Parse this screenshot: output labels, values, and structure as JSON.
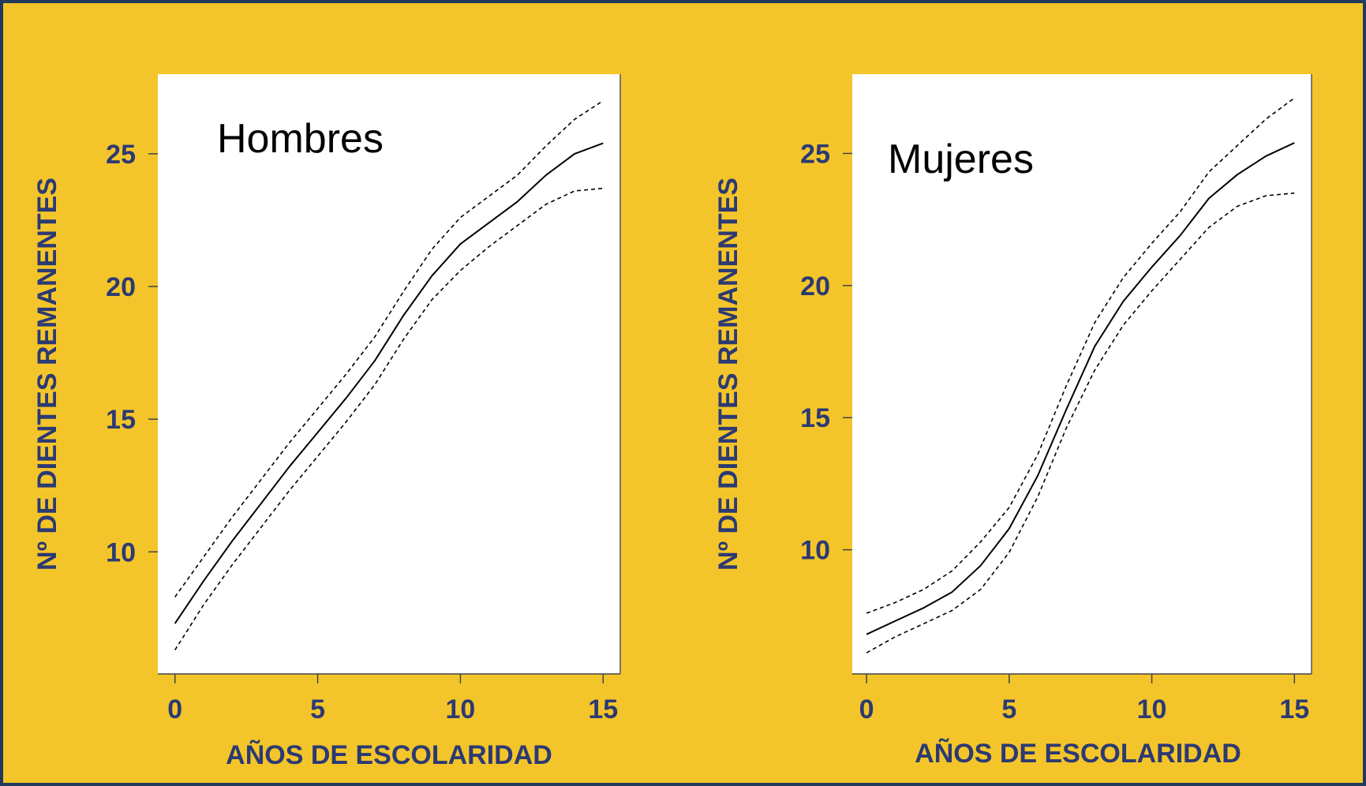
{
  "colors": {
    "background": "#f4c52a",
    "plot_area": "#ffffff",
    "axis_text": "#2c3a72",
    "curve": "#000000",
    "border": "#1f3a5a"
  },
  "chart_data": [
    {
      "type": "line",
      "title": "Hombres",
      "xlabel": "AÑOS DE ESCOLARIDAD",
      "ylabel": "Nº DE DIENTES REMANENTES",
      "xlim": [
        -0.6,
        15.6
      ],
      "ylim": [
        5.4,
        28
      ],
      "xticks": [
        0,
        5,
        10,
        15
      ],
      "yticks": [
        10,
        15,
        20,
        25
      ],
      "grid": false,
      "legend": "none",
      "series": [
        {
          "style": "solid",
          "x": [
            0,
            1,
            2,
            3,
            4,
            5,
            6,
            7,
            8,
            9,
            10,
            11,
            12,
            13,
            14,
            15
          ],
          "y": [
            7.3,
            8.9,
            10.4,
            11.8,
            13.2,
            14.5,
            15.8,
            17.2,
            18.9,
            20.4,
            21.6,
            22.4,
            23.2,
            24.2,
            25.0,
            25.4
          ]
        },
        {
          "style": "dashed",
          "x": [
            0,
            1,
            2,
            3,
            4,
            5,
            6,
            7,
            8,
            9,
            10,
            11,
            12,
            13,
            14,
            15
          ],
          "y": [
            8.3,
            9.8,
            11.3,
            12.7,
            14.1,
            15.4,
            16.7,
            18.1,
            19.8,
            21.4,
            22.6,
            23.4,
            24.2,
            25.3,
            26.3,
            27.0
          ]
        },
        {
          "style": "dashed",
          "x": [
            0,
            1,
            2,
            3,
            4,
            5,
            6,
            7,
            8,
            9,
            10,
            11,
            12,
            13,
            14,
            15
          ],
          "y": [
            6.3,
            8.0,
            9.5,
            10.9,
            12.3,
            13.6,
            14.9,
            16.3,
            18.0,
            19.5,
            20.6,
            21.5,
            22.3,
            23.1,
            23.6,
            23.7
          ]
        }
      ]
    },
    {
      "type": "line",
      "title": "Mujeres",
      "xlabel": "AÑOS DE ESCOLARIDAD",
      "ylabel": "Nº DE DIENTES REMANENTES",
      "xlim": [
        -0.5,
        15.6
      ],
      "ylim": [
        5.3,
        28
      ],
      "xticks": [
        0,
        5,
        10,
        15
      ],
      "yticks": [
        10,
        15,
        20,
        25
      ],
      "grid": false,
      "legend": "none",
      "series": [
        {
          "style": "solid",
          "x": [
            0,
            1,
            2,
            3,
            4,
            5,
            6,
            7,
            8,
            9,
            10,
            11,
            12,
            13,
            14,
            15
          ],
          "y": [
            6.8,
            7.3,
            7.8,
            8.4,
            9.4,
            10.8,
            12.8,
            15.3,
            17.7,
            19.4,
            20.7,
            21.9,
            23.3,
            24.2,
            24.9,
            25.4
          ]
        },
        {
          "style": "dashed",
          "x": [
            0,
            1,
            2,
            3,
            4,
            5,
            6,
            7,
            8,
            9,
            10,
            11,
            12,
            13,
            14,
            15
          ],
          "y": [
            7.6,
            8.0,
            8.5,
            9.2,
            10.3,
            11.6,
            13.6,
            16.2,
            18.6,
            20.3,
            21.6,
            22.8,
            24.3,
            25.3,
            26.3,
            27.1
          ]
        },
        {
          "style": "dashed",
          "x": [
            0,
            1,
            2,
            3,
            4,
            5,
            6,
            7,
            8,
            9,
            10,
            11,
            12,
            13,
            14,
            15
          ],
          "y": [
            6.1,
            6.7,
            7.2,
            7.7,
            8.5,
            9.9,
            12.0,
            14.6,
            16.8,
            18.5,
            19.8,
            21.0,
            22.2,
            23.0,
            23.4,
            23.5
          ]
        }
      ]
    }
  ]
}
